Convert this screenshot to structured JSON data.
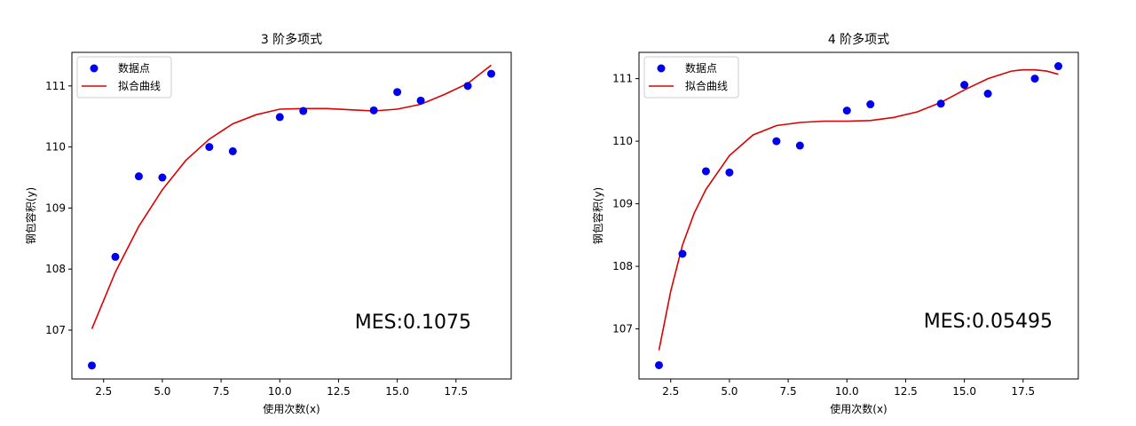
{
  "chart_data": [
    {
      "type": "scatter",
      "title": "3 阶多项式",
      "xlabel": "使用次数(x)",
      "ylabel": "钢包容积(y)",
      "xlim": [
        1.15,
        19.85
      ],
      "ylim": [
        106.2,
        111.55
      ],
      "xticks": [
        2.5,
        5.0,
        7.5,
        10.0,
        12.5,
        15.0,
        17.5
      ],
      "xtick_labels": [
        "2.5",
        "5.0",
        "7.5",
        "10.0",
        "12.5",
        "15.0",
        "17.5"
      ],
      "yticks": [
        107,
        108,
        109,
        110,
        111
      ],
      "ytick_labels": [
        "107",
        "108",
        "109",
        "110",
        "111"
      ],
      "legend": {
        "placement": "top-left",
        "entries": [
          "数据点",
          "拟合曲线"
        ]
      },
      "annotation": "MES:0.1075",
      "scatter_color": "#0000ee",
      "line_color": "#dd0000",
      "points": {
        "name": "数据点",
        "x": [
          2,
          3,
          4,
          5,
          7,
          8,
          10,
          11,
          14,
          15,
          16,
          18,
          19
        ],
        "y": [
          106.42,
          108.2,
          109.52,
          109.5,
          110.0,
          109.93,
          110.49,
          110.59,
          110.6,
          110.9,
          110.76,
          111.0,
          111.2
        ]
      },
      "curve": {
        "name": "拟合曲线",
        "x": [
          2,
          3,
          4,
          5,
          6,
          7,
          8,
          9,
          10,
          11,
          12,
          13,
          14,
          15,
          16,
          17,
          18,
          19
        ],
        "y": [
          107.02,
          107.95,
          108.7,
          109.3,
          109.78,
          110.13,
          110.38,
          110.53,
          110.62,
          110.63,
          110.63,
          110.61,
          110.59,
          110.62,
          110.7,
          110.86,
          111.04,
          111.34
        ]
      }
    },
    {
      "type": "scatter",
      "title": "4 阶多项式",
      "xlabel": "使用次数(x)",
      "ylabel": "钢包容积(y)",
      "xlim": [
        1.15,
        19.85
      ],
      "ylim": [
        106.2,
        111.42
      ],
      "xticks": [
        2.5,
        5.0,
        7.5,
        10.0,
        12.5,
        15.0,
        17.5
      ],
      "xtick_labels": [
        "2.5",
        "5.0",
        "7.5",
        "10.0",
        "12.5",
        "15.0",
        "17.5"
      ],
      "yticks": [
        107,
        108,
        109,
        110,
        111
      ],
      "ytick_labels": [
        "107",
        "108",
        "109",
        "110",
        "111"
      ],
      "legend": {
        "placement": "top-left",
        "entries": [
          "数据点",
          "拟合曲线"
        ]
      },
      "annotation": "MES:0.05495",
      "scatter_color": "#0000ee",
      "line_color": "#dd0000",
      "points": {
        "name": "数据点",
        "x": [
          2,
          3,
          4,
          5,
          7,
          8,
          10,
          11,
          14,
          15,
          16,
          18,
          19
        ],
        "y": [
          106.42,
          108.2,
          109.52,
          109.5,
          110.0,
          109.93,
          110.49,
          110.59,
          110.6,
          110.9,
          110.76,
          111.0,
          111.2
        ]
      },
      "curve": {
        "name": "拟合曲线",
        "x": [
          2,
          2.5,
          3,
          3.5,
          4,
          5,
          6,
          7,
          8,
          9,
          10,
          11,
          12,
          13,
          14,
          15,
          16,
          17,
          17.5,
          18,
          18.5,
          19
        ],
        "y": [
          106.66,
          107.6,
          108.34,
          108.85,
          109.23,
          109.77,
          110.1,
          110.25,
          110.3,
          110.32,
          110.32,
          110.33,
          110.38,
          110.47,
          110.62,
          110.82,
          111.0,
          111.12,
          111.14,
          111.14,
          111.12,
          111.07
        ]
      }
    }
  ]
}
